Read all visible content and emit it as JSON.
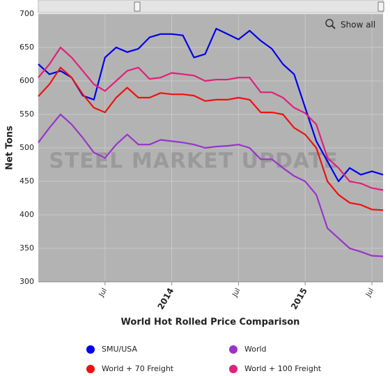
{
  "chart_data": {
    "type": "line",
    "title": "World Hot Rolled Price Comparison",
    "y_label": "Net Tons",
    "zoom_button": "Show all",
    "watermark": "STEEL MARKET UPDATE",
    "categories": [
      null,
      null,
      null,
      null,
      null,
      null,
      "Jul",
      null,
      null,
      null,
      null,
      null,
      "2014",
      null,
      null,
      null,
      null,
      null,
      "Jul",
      null,
      null,
      null,
      null,
      null,
      "2015",
      null,
      null,
      null,
      null,
      null,
      "Jul",
      null
    ],
    "series": [
      {
        "name": "SMU/USA",
        "color": "#0000ee",
        "values": [
          625,
          610,
          615,
          605,
          578,
          572,
          635,
          650,
          643,
          648,
          665,
          670,
          670,
          668,
          635,
          640,
          678,
          670,
          662,
          675,
          660,
          648,
          625,
          610,
          560,
          510,
          480,
          450,
          470,
          460,
          465,
          460
        ]
      },
      {
        "name": "World",
        "color": "#9933cc",
        "values": [
          508,
          530,
          550,
          535,
          515,
          493,
          485,
          505,
          520,
          505,
          505,
          512,
          510,
          508,
          505,
          500,
          502,
          503,
          505,
          500,
          483,
          483,
          470,
          458,
          450,
          430,
          380,
          365,
          350,
          345,
          339,
          338
        ]
      },
      {
        "name": "World + 70 Freight",
        "color": "#ee1111",
        "values": [
          577,
          595,
          620,
          605,
          580,
          560,
          553,
          575,
          590,
          575,
          575,
          582,
          580,
          580,
          578,
          570,
          572,
          572,
          575,
          572,
          553,
          553,
          550,
          530,
          520,
          500,
          450,
          430,
          418,
          415,
          408,
          407
        ]
      },
      {
        "name": "World + 100 Freight",
        "color": "#e0207a",
        "values": [
          605,
          625,
          650,
          635,
          615,
          595,
          585,
          600,
          615,
          620,
          603,
          605,
          612,
          610,
          608,
          600,
          602,
          602,
          605,
          605,
          583,
          583,
          575,
          560,
          552,
          535,
          485,
          470,
          450,
          447,
          440,
          437
        ]
      }
    ],
    "ylim": [
      300,
      700
    ],
    "yticks": [
      300,
      350,
      400,
      450,
      500,
      550,
      600,
      650,
      700
    ],
    "grid": true
  }
}
